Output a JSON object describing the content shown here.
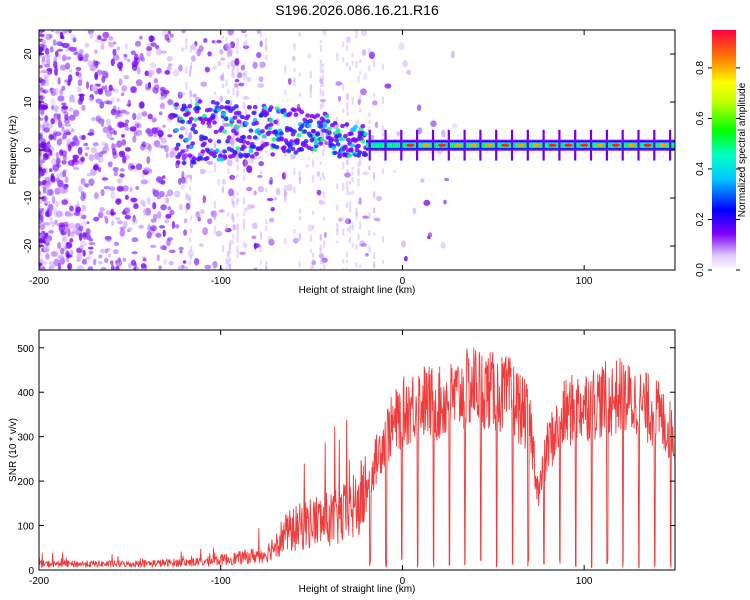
{
  "title": "S196.2026.086.16.21.R16",
  "colors": {
    "snr_line": "#f03c3c",
    "axis": "#000000",
    "background": "#ffffff"
  },
  "chart_data": [
    {
      "type": "heatmap",
      "title": "",
      "xlabel": "Height of straight line (km)",
      "ylabel": "Frequency (Hz)",
      "xlim": [
        -200,
        150
      ],
      "ylim": [
        -25,
        25
      ],
      "xticks": [
        -200,
        -100,
        0,
        100
      ],
      "xtick_labels": [
        "-200",
        "-100",
        "0",
        "100"
      ],
      "yticks": [
        -20,
        -10,
        0,
        10,
        20
      ],
      "ytick_labels": [
        "-20",
        "-10",
        "0",
        "10",
        "20"
      ],
      "description_values": {
        "signal_frequency_hz": 1,
        "signal_onset_km": -125,
        "strong_signal_onset_km": -20
      },
      "colorbar": {
        "label": "Normalized spectral amplitude",
        "range": [
          0,
          0.95
        ],
        "ticks": [
          0.0,
          0.2,
          0.4,
          0.6,
          0.8
        ],
        "tick_labels": [
          "0.0",
          "0.2",
          "0.4",
          "0.6",
          "0.8"
        ],
        "colormap": "rainbow-white-to-red"
      }
    },
    {
      "type": "line",
      "title": "",
      "xlabel": "Height of straight line (km)",
      "ylabel": "SNR (10 * v/v)",
      "xlim": [
        -200,
        150
      ],
      "ylim": [
        0,
        540
      ],
      "xticks": [
        -200,
        -100,
        0,
        100
      ],
      "xtick_labels": [
        "-200",
        "-100",
        "0",
        "100"
      ],
      "yticks": [
        0,
        100,
        200,
        300,
        400,
        500
      ],
      "ytick_labels": [
        "0",
        "100",
        "200",
        "300",
        "400",
        "500"
      ],
      "series": [
        {
          "name": "SNR",
          "envelope_x": [
            -200,
            -150,
            -110,
            -90,
            -75,
            -65,
            -50,
            -35,
            -25,
            -20,
            -15,
            -10,
            -5,
            0,
            10,
            20,
            30,
            40,
            50,
            60,
            70,
            75,
            80,
            90,
            100,
            110,
            120,
            130,
            140,
            150
          ],
          "envelope_y": [
            15,
            15,
            20,
            30,
            40,
            90,
            120,
            130,
            160,
            200,
            260,
            320,
            350,
            380,
            410,
            400,
            420,
            450,
            430,
            420,
            360,
            180,
            300,
            380,
            400,
            410,
            420,
            400,
            380,
            320
          ]
        }
      ]
    }
  ]
}
